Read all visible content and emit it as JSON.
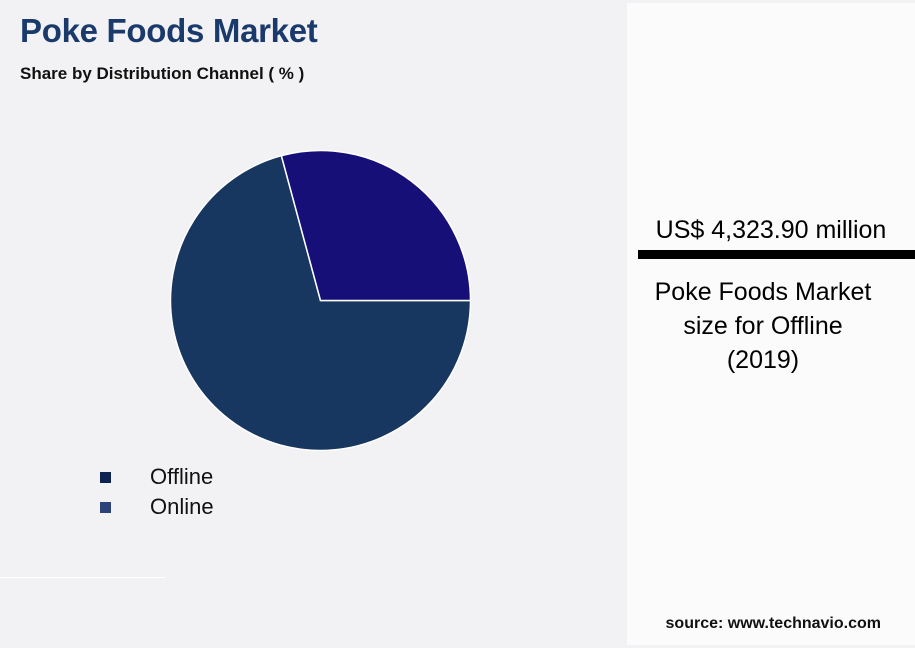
{
  "header": {
    "title": "Poke Foods Market",
    "subtitle": "Share by Distribution Channel ( % )"
  },
  "legend": [
    {
      "label": "Offline",
      "color": "#0f2350"
    },
    {
      "label": "Online",
      "color": "#2c4278"
    }
  ],
  "callout": {
    "value": "US$ 4,323.90 million",
    "caption_line1": "Poke Foods Market",
    "caption_line2": "size for Offline",
    "caption_line3": "(2019)"
  },
  "source": "source: www.technavio.com",
  "colors": {
    "title": "#1a3a6b",
    "offline_slice": "#173660",
    "online_slice": "#160f78",
    "background": "#f2f2f4",
    "panel": "#fbfbfc"
  },
  "chart_data": {
    "type": "pie",
    "title": "Poke Foods Market",
    "subtitle": "Share by Distribution Channel ( % )",
    "categories": [
      "Offline",
      "Online"
    ],
    "values": [
      70.8,
      29.2
    ],
    "unit": "%",
    "legend_position": "bottom-left",
    "annotation": "US$ 4,323.90 million — Poke Foods Market size for Offline (2019)"
  }
}
